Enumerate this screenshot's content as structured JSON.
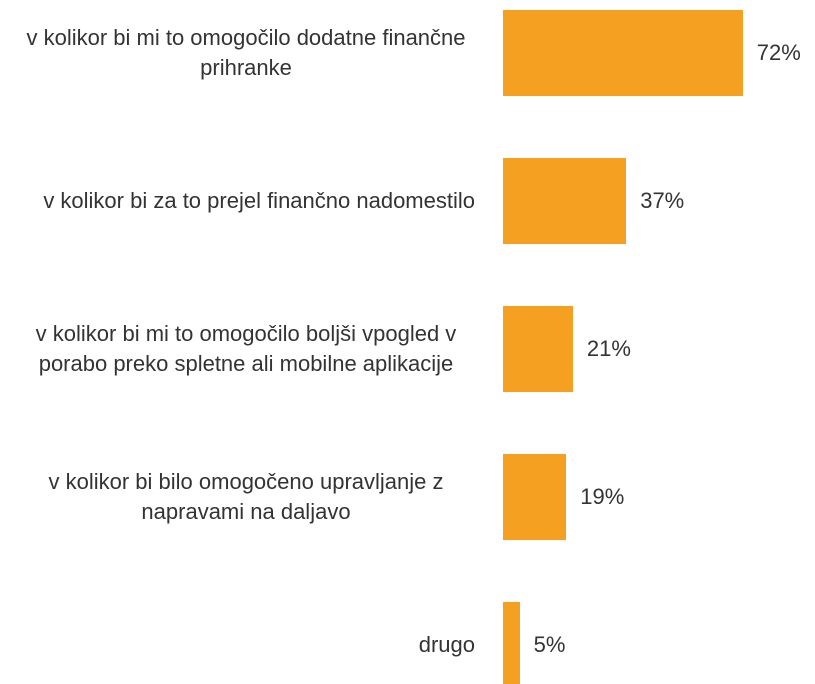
{
  "chart_data": {
    "type": "bar",
    "orientation": "horizontal",
    "categories": [
      "v kolikor bi mi to omogočilo dodatne finančne prihranke",
      "v kolikor bi za to prejel finančno nadomestilo",
      "v kolikor bi mi to omogočilo boljši vpogled v porabo preko spletne ali mobilne aplikacije",
      "v kolikor bi bilo omogočeno upravljanje z napravami na daljavo",
      "drugo"
    ],
    "values": [
      72,
      37,
      21,
      19,
      5
    ],
    "value_labels": [
      "72%",
      "37%",
      "21%",
      "19%",
      "5%"
    ],
    "color": "#f5a020"
  }
}
